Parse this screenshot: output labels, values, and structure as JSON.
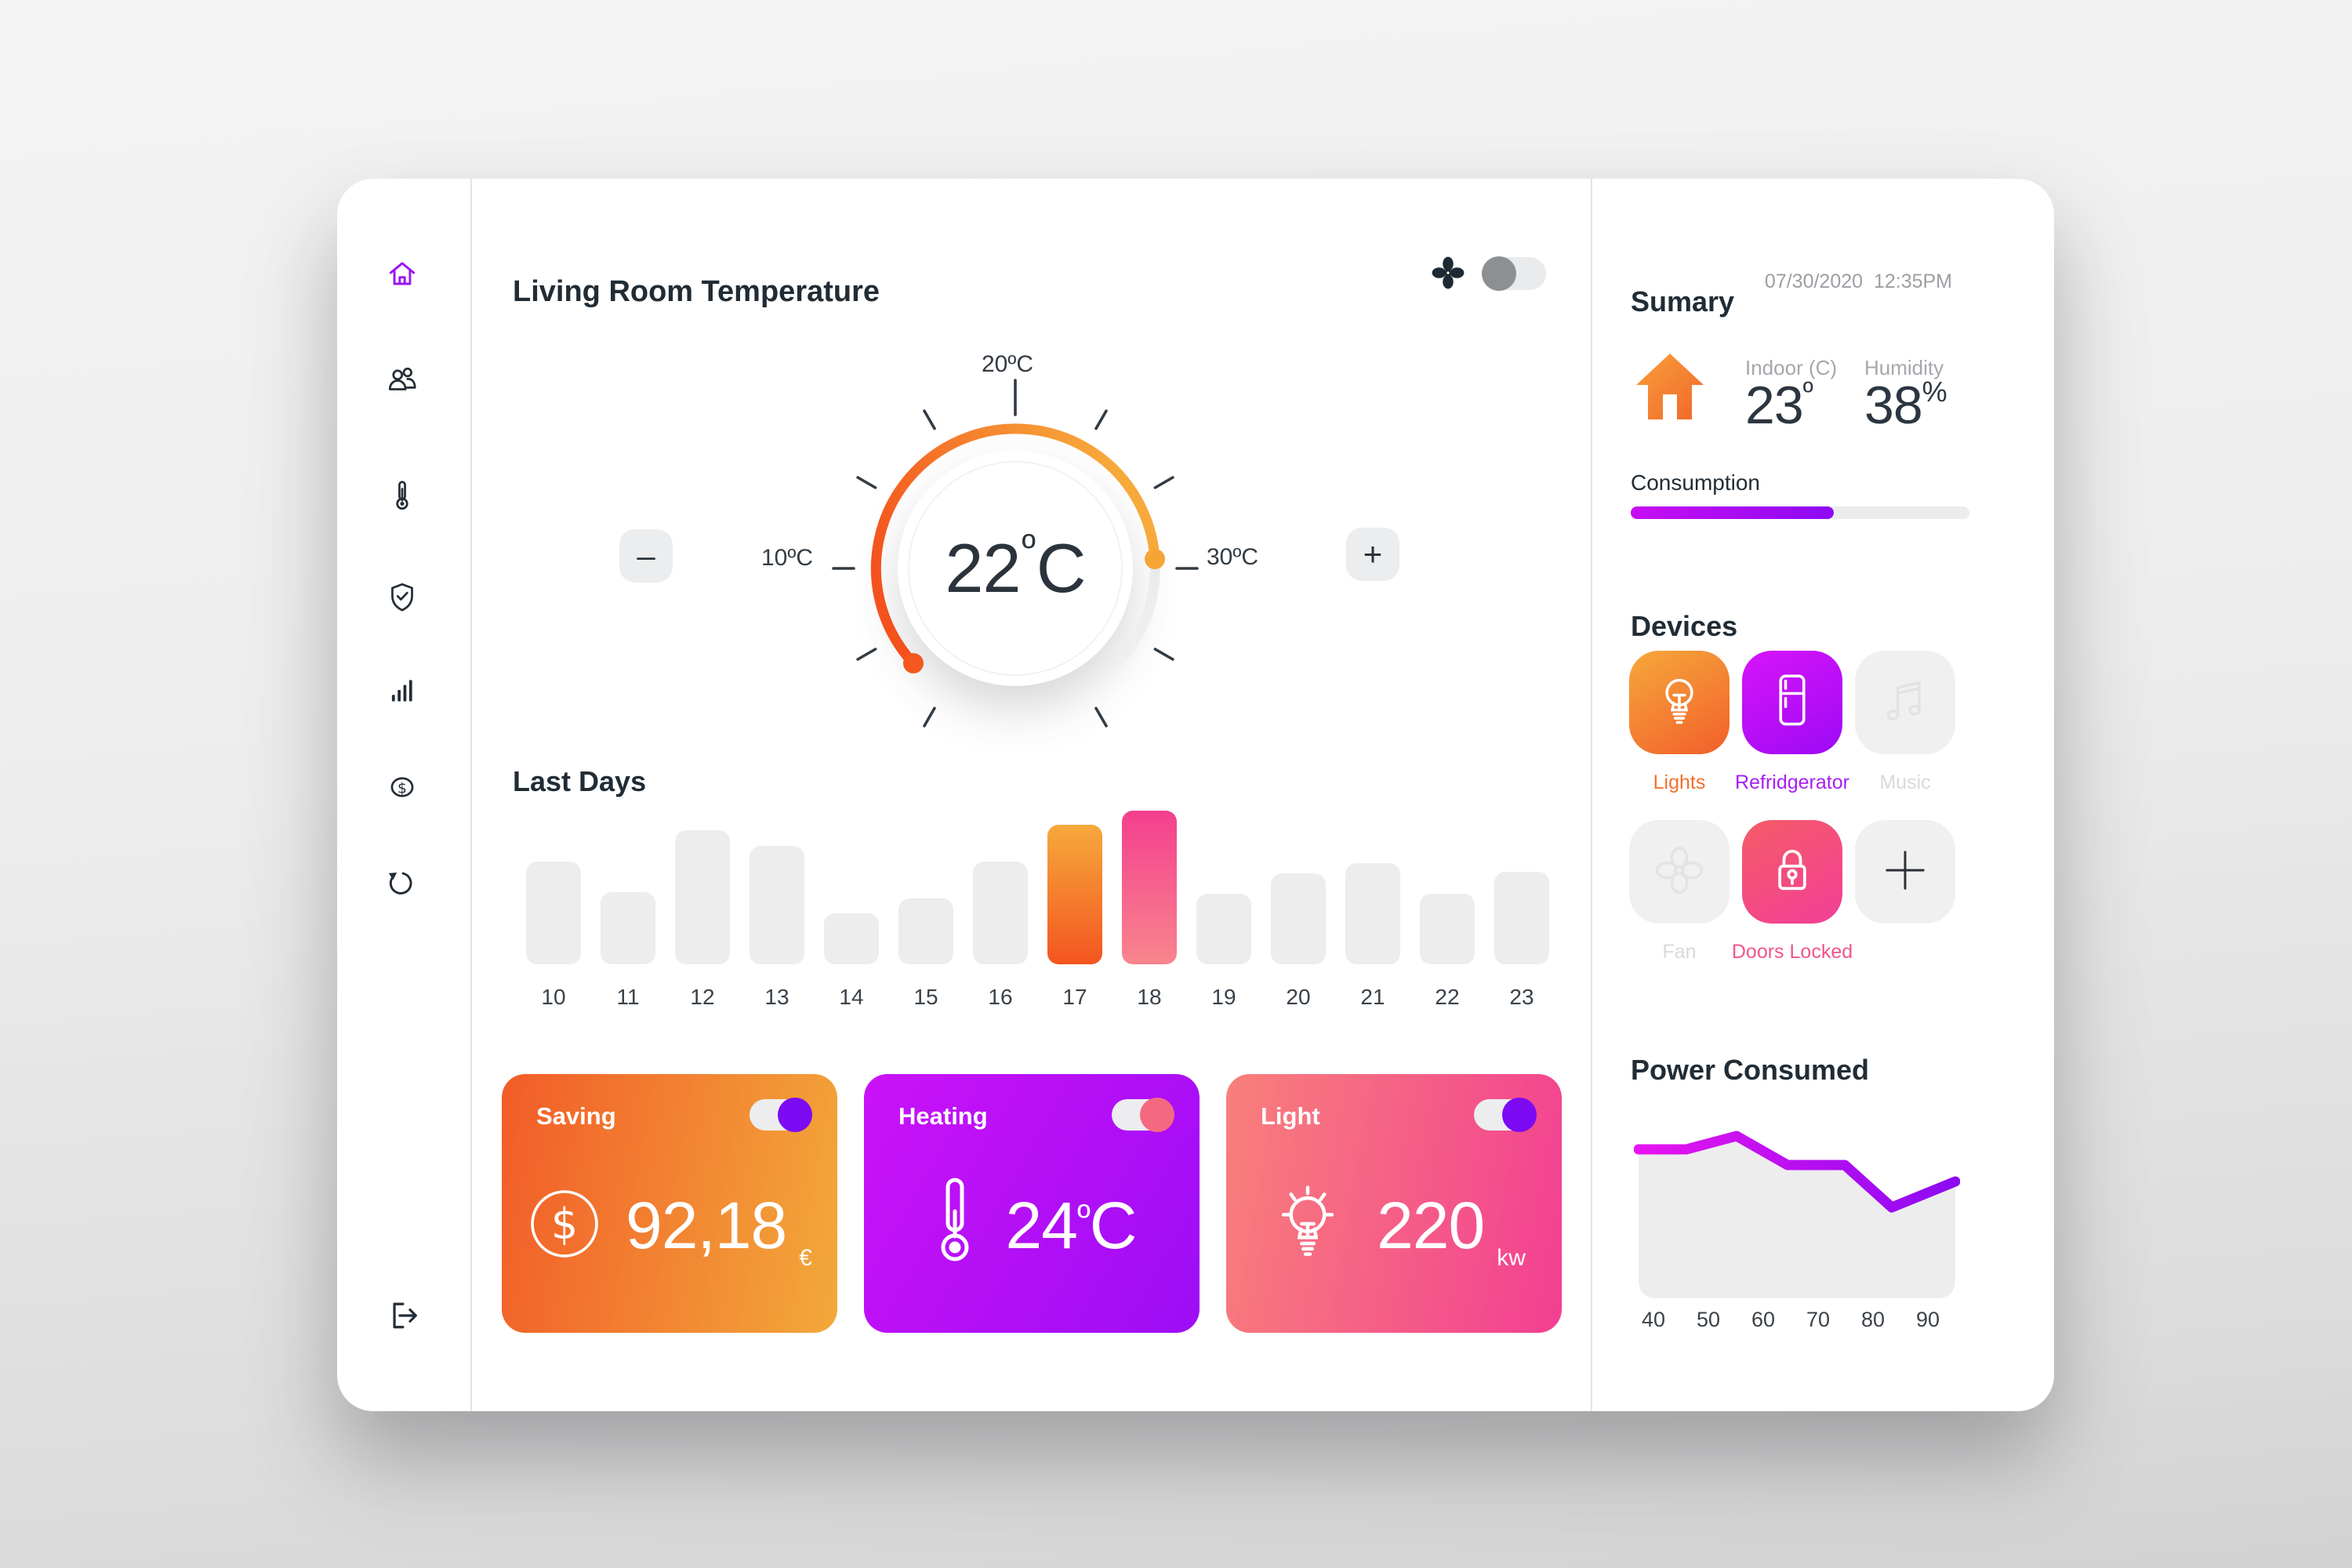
{
  "sidebar": {
    "items": [
      {
        "icon": "home",
        "active": true
      },
      {
        "icon": "users",
        "active": false
      },
      {
        "icon": "thermometer",
        "active": false
      },
      {
        "icon": "shield-check",
        "active": false
      },
      {
        "icon": "stats-bars",
        "active": false
      },
      {
        "icon": "dollar-circle",
        "active": false
      },
      {
        "icon": "refresh",
        "active": false
      },
      {
        "icon": "logout",
        "active": false
      }
    ]
  },
  "main": {
    "title": "Living Room Temperature",
    "fan_toggle_on": false,
    "dial": {
      "label_top": "20ºC",
      "label_left": "10ºC",
      "label_right": "30ºC",
      "current": "22",
      "degree": "º",
      "scale_letter": "C",
      "minus": "–",
      "plus": "+"
    },
    "last_days_title": "Last Days",
    "cards": [
      {
        "title": "Saving",
        "value": "92,18",
        "unit": "€",
        "toggle_on": true,
        "icon": "dollar-circle"
      },
      {
        "title": "Heating",
        "value": "24",
        "unit_sup": "º",
        "unit_main": "C",
        "toggle_on": true,
        "icon": "thermometer"
      },
      {
        "title": "Light",
        "value": "220",
        "unit": "kw",
        "toggle_on": true,
        "icon": "light-bulb"
      }
    ]
  },
  "summary": {
    "title": "Sumary",
    "datetime": "07/30/2020  12:35PM",
    "indoor": {
      "label": "Indoor (C)",
      "value": "23",
      "unit": "º"
    },
    "humidity": {
      "label": "Humidity",
      "value": "38",
      "unit": "%"
    },
    "consumption": {
      "label": "Consumption",
      "percent": 60
    },
    "devices": {
      "title": "Devices",
      "items": [
        {
          "label": "Lights",
          "state": "on",
          "icon": "light-bulb"
        },
        {
          "label": "Refridgerator",
          "state": "on",
          "icon": "fridge"
        },
        {
          "label": "Music",
          "state": "off",
          "icon": "music-note"
        },
        {
          "label": "Fan",
          "state": "off",
          "icon": "fan"
        },
        {
          "label": "Doors Locked",
          "state": "on",
          "icon": "padlock"
        },
        {
          "label": "",
          "state": "add",
          "icon": "plus"
        }
      ]
    },
    "power_title": "Power Consumed"
  },
  "chart_data": [
    {
      "type": "bar",
      "title": "Last Days",
      "categories": [
        "10",
        "11",
        "12",
        "13",
        "14",
        "15",
        "16",
        "17",
        "18",
        "19",
        "20",
        "21",
        "22",
        "23"
      ],
      "values": [
        67,
        47,
        87,
        77,
        33,
        43,
        67,
        91,
        100,
        46,
        59,
        66,
        46,
        60
      ],
      "bar_color": "#ededee",
      "highlights": {
        "7": [
          "#f6a93c",
          "#f45520"
        ],
        "8": [
          "#f43f8e",
          "#f8858d"
        ]
      },
      "grid": false,
      "legend": false
    },
    {
      "type": "line",
      "title": "Power Consumed",
      "x_ticks": [
        "40",
        "50",
        "60",
        "70",
        "80",
        "90"
      ],
      "points": [
        {
          "x": 0.0,
          "y": 83
        },
        {
          "x": 0.15,
          "y": 83
        },
        {
          "x": 0.31,
          "y": 91
        },
        {
          "x": 0.47,
          "y": 73
        },
        {
          "x": 0.65,
          "y": 73
        },
        {
          "x": 0.8,
          "y": 47
        },
        {
          "x": 1.0,
          "y": 63
        }
      ],
      "ylim": [
        0,
        100
      ],
      "line_gradient": [
        "#e814f0",
        "#8b0af2"
      ],
      "area_color": "#ededee",
      "grid": false,
      "legend": false
    }
  ],
  "colors": {
    "accent_orange": "#f2672c",
    "accent_purple": "#a50df5",
    "accent_pink": "#f2548c",
    "toggle_knob_purple": "#7c0af2",
    "toggle_knob_pink": "#f4697f",
    "dial_arc_start": "#f4511d",
    "dial_arc_end": "#f7a93b",
    "dark_text": "#222d36",
    "gray_text": "#9b9fa3"
  }
}
